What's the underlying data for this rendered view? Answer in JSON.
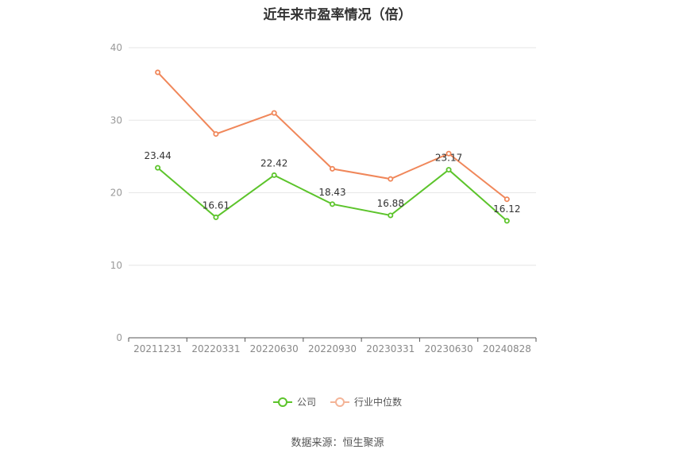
{
  "chart_data": {
    "type": "line",
    "title": "近年来市盈率情况（倍）",
    "categories": [
      "20211231",
      "20220331",
      "20220630",
      "20220930",
      "20230331",
      "20230630",
      "20240828"
    ],
    "ylim": [
      0,
      40
    ],
    "yticks": [
      0,
      10,
      20,
      30,
      40
    ],
    "grid": true,
    "legend_position": "bottom",
    "series": [
      {
        "name": "公司",
        "color": "#5cc42b",
        "values": [
          23.44,
          16.61,
          22.42,
          18.43,
          16.88,
          23.17,
          16.12
        ],
        "labels": [
          "23.44",
          "16.61",
          "22.42",
          "18.43",
          "16.88",
          "23.17",
          "16.12"
        ]
      },
      {
        "name": "行业中位数",
        "color": "#f0875a",
        "values": [
          36.6,
          28.1,
          31.0,
          23.3,
          21.9,
          25.4,
          19.1
        ]
      }
    ]
  },
  "source": "数据来源：恒生聚源"
}
